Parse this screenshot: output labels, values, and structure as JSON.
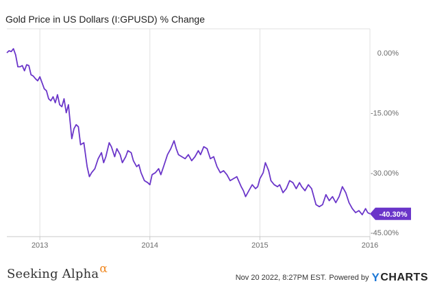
{
  "chart_data": {
    "type": "line",
    "title": "Gold Price in US Dollars (I:GPUSD) % Change",
    "xlabel": "",
    "ylabel": "",
    "x_ticks": [
      "2013",
      "2014",
      "2015",
      "2016"
    ],
    "x_tick_values": [
      2013.0,
      2014.0,
      2015.0,
      2016.0
    ],
    "xlim": [
      2012.7,
      2016.0
    ],
    "ylim": [
      -46,
      6
    ],
    "y_ticks": [
      "0.00%",
      "-15.00%",
      "-30.00%",
      "-45.00%"
    ],
    "y_tick_values": [
      0,
      -15,
      -30,
      -45
    ],
    "grid": "vertical",
    "series": [
      {
        "color": "#6a35c9",
        "last_value_label": "-40.30%",
        "points": [
          [
            2012.7,
            0.0
          ],
          [
            2012.72,
            0.5
          ],
          [
            2012.74,
            0.3
          ],
          [
            2012.76,
            1.0
          ],
          [
            2012.78,
            -0.5
          ],
          [
            2012.8,
            -3.5
          ],
          [
            2012.82,
            -3.5
          ],
          [
            2012.84,
            -3.2
          ],
          [
            2012.86,
            -4.5
          ],
          [
            2012.88,
            -3.0
          ],
          [
            2012.9,
            -3.2
          ],
          [
            2012.92,
            -5.5
          ],
          [
            2012.94,
            -5.8
          ],
          [
            2012.96,
            -6.5
          ],
          [
            2012.98,
            -7.0
          ],
          [
            2013.0,
            -6.0
          ],
          [
            2013.02,
            -7.5
          ],
          [
            2013.04,
            -9.0
          ],
          [
            2013.06,
            -9.5
          ],
          [
            2013.08,
            -11.5
          ],
          [
            2013.1,
            -12.0
          ],
          [
            2013.12,
            -11.0
          ],
          [
            2013.14,
            -12.5
          ],
          [
            2013.16,
            -10.5
          ],
          [
            2013.18,
            -13.0
          ],
          [
            2013.2,
            -13.5
          ],
          [
            2013.22,
            -11.5
          ],
          [
            2013.24,
            -15.0
          ],
          [
            2013.26,
            -13.0
          ],
          [
            2013.29,
            -21.5
          ],
          [
            2013.31,
            -19.0
          ],
          [
            2013.33,
            -18.0
          ],
          [
            2013.35,
            -18.5
          ],
          [
            2013.37,
            -23.0
          ],
          [
            2013.4,
            -22.5
          ],
          [
            2013.43,
            -28.5
          ],
          [
            2013.45,
            -31.0
          ],
          [
            2013.47,
            -30.0
          ],
          [
            2013.5,
            -29.0
          ],
          [
            2013.53,
            -26.5
          ],
          [
            2013.56,
            -25.0
          ],
          [
            2013.58,
            -27.5
          ],
          [
            2013.6,
            -26.0
          ],
          [
            2013.63,
            -22.5
          ],
          [
            2013.65,
            -23.5
          ],
          [
            2013.68,
            -26.0
          ],
          [
            2013.7,
            -24.0
          ],
          [
            2013.73,
            -25.5
          ],
          [
            2013.75,
            -27.5
          ],
          [
            2013.78,
            -26.0
          ],
          [
            2013.8,
            -24.5
          ],
          [
            2013.83,
            -25.0
          ],
          [
            2013.85,
            -27.0
          ],
          [
            2013.88,
            -28.5
          ],
          [
            2013.9,
            -28.0
          ],
          [
            2013.92,
            -30.0
          ],
          [
            2013.95,
            -32.0
          ],
          [
            2013.98,
            -32.5
          ],
          [
            2014.0,
            -33.0
          ],
          [
            2014.02,
            -30.5
          ],
          [
            2014.05,
            -30.0
          ],
          [
            2014.08,
            -29.0
          ],
          [
            2014.1,
            -30.5
          ],
          [
            2014.13,
            -28.0
          ],
          [
            2014.16,
            -25.5
          ],
          [
            2014.19,
            -24.0
          ],
          [
            2014.22,
            -22.0
          ],
          [
            2014.24,
            -24.0
          ],
          [
            2014.26,
            -25.5
          ],
          [
            2014.29,
            -26.0
          ],
          [
            2014.32,
            -26.5
          ],
          [
            2014.35,
            -25.5
          ],
          [
            2014.38,
            -27.0
          ],
          [
            2014.41,
            -26.0
          ],
          [
            2014.44,
            -24.5
          ],
          [
            2014.46,
            -25.5
          ],
          [
            2014.49,
            -23.5
          ],
          [
            2014.52,
            -24.0
          ],
          [
            2014.55,
            -26.5
          ],
          [
            2014.58,
            -26.0
          ],
          [
            2014.61,
            -28.5
          ],
          [
            2014.64,
            -30.0
          ],
          [
            2014.67,
            -29.5
          ],
          [
            2014.7,
            -30.5
          ],
          [
            2014.73,
            -32.0
          ],
          [
            2014.76,
            -31.5
          ],
          [
            2014.79,
            -31.0
          ],
          [
            2014.83,
            -33.5
          ],
          [
            2014.85,
            -34.5
          ],
          [
            2014.87,
            -36.0
          ],
          [
            2014.9,
            -34.5
          ],
          [
            2014.93,
            -33.0
          ],
          [
            2014.96,
            -34.0
          ],
          [
            2014.98,
            -33.5
          ],
          [
            2015.0,
            -31.5
          ],
          [
            2015.03,
            -30.0
          ],
          [
            2015.05,
            -27.5
          ],
          [
            2015.08,
            -29.5
          ],
          [
            2015.1,
            -32.0
          ],
          [
            2015.13,
            -33.0
          ],
          [
            2015.16,
            -33.5
          ],
          [
            2015.18,
            -33.0
          ],
          [
            2015.21,
            -35.0
          ],
          [
            2015.24,
            -34.0
          ],
          [
            2015.27,
            -32.0
          ],
          [
            2015.3,
            -32.5
          ],
          [
            2015.33,
            -34.0
          ],
          [
            2015.36,
            -32.5
          ],
          [
            2015.38,
            -33.5
          ],
          [
            2015.41,
            -34.5
          ],
          [
            2015.44,
            -33.0
          ],
          [
            2015.47,
            -34.0
          ],
          [
            2015.51,
            -38.0
          ],
          [
            2015.54,
            -38.5
          ],
          [
            2015.57,
            -38.0
          ],
          [
            2015.6,
            -35.5
          ],
          [
            2015.63,
            -37.0
          ],
          [
            2015.66,
            -36.0
          ],
          [
            2015.69,
            -37.5
          ],
          [
            2015.72,
            -36.0
          ],
          [
            2015.75,
            -33.5
          ],
          [
            2015.78,
            -35.0
          ],
          [
            2015.81,
            -37.5
          ],
          [
            2015.84,
            -39.0
          ],
          [
            2015.87,
            -40.0
          ],
          [
            2015.9,
            -39.5
          ],
          [
            2015.93,
            -40.5
          ],
          [
            2015.96,
            -39.0
          ],
          [
            2015.98,
            -40.0
          ],
          [
            2016.0,
            -40.3
          ]
        ]
      }
    ]
  },
  "footer": {
    "brand": "Seeking Alpha",
    "brand_symbol": "α",
    "timestamp": "Nov 20 2022, 8:27PM EST.",
    "powered_by": "Powered by",
    "ycharts_y": "Y",
    "ycharts_rest": "CHARTS"
  },
  "colors": {
    "line": "#6a35c9",
    "grid": "#e1e1e1",
    "axis": "#c8c8c8",
    "brand_accent": "#f08a24",
    "ycharts_accent": "#1e78d6"
  }
}
